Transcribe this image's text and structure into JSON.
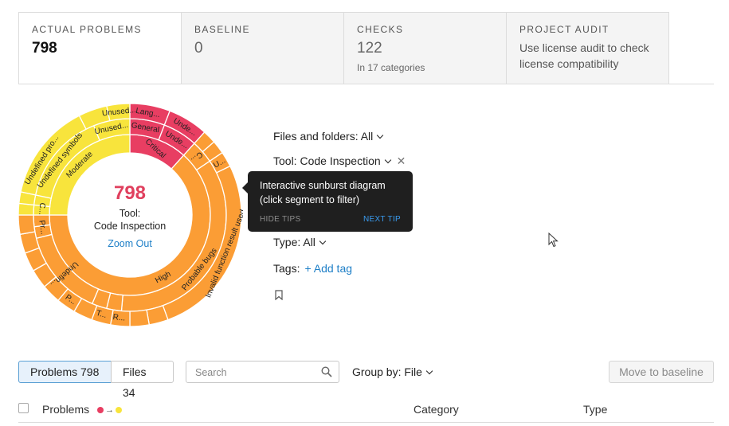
{
  "tabs": [
    {
      "title": "ACTUAL PROBLEMS",
      "value": "798"
    },
    {
      "title": "BASELINE",
      "value": "0"
    },
    {
      "title": "CHECKS",
      "value": "122",
      "sub": "In 17 categories"
    },
    {
      "title": "PROJECT AUDIT",
      "desc_line1": "Use license audit to check",
      "desc_line2": "license compatibility"
    }
  ],
  "sunburst": {
    "center_count": "798",
    "center_line1": "Tool:",
    "center_line2": "Code Inspection",
    "zoom_label": "Zoom Out",
    "colors": {
      "critical": "#e83e62",
      "high": "#fb9d35",
      "moderate": "#f8e43c"
    },
    "labels": {
      "critical": "Critical",
      "general": "General",
      "lang": "Lang...",
      "unde1": "Unde...",
      "unde2": "Unde...",
      "high": "High",
      "probable_bugs": "Probable bugs",
      "invalid_fn": "Invalid function result used",
      "c_small": "C...",
      "u_small": "U...",
      "undefin": "Undefin...",
      "t_small": "T...",
      "r_small": "R...",
      "p_small": "P...",
      "moderate": "Moderate",
      "undefined_symbols": "Undefined symbols",
      "undefined_pro": "Undefined pro...",
      "unused1": "Unused...",
      "unused2": "Unused...",
      "pr_small": "Pr...",
      "c2_small": "C..."
    }
  },
  "filters": {
    "files": "Files and folders: All",
    "tool": "Tool: Code Inspection",
    "type": "Type: All",
    "tags_label": "Tags:",
    "add_tag": "+ Add tag"
  },
  "tooltip": {
    "line1": "Interactive sunburst diagram",
    "line2": "(click segment to filter)",
    "hide": "HIDE TIPS",
    "next": "NEXT TIP"
  },
  "toolbar": {
    "problems_btn": "Problems 798",
    "files_btn": "Files 34",
    "search_placeholder": "Search",
    "group_by": "Group by: File",
    "move_btn": "Move to baseline"
  },
  "table": {
    "col_problems": "Problems",
    "col_category": "Category",
    "col_type": "Type",
    "severity_arrow": "→"
  },
  "icons": [
    "search-icon",
    "chevron-down-icon",
    "close-icon",
    "bookmark-icon",
    "mouse-cursor-icon"
  ]
}
